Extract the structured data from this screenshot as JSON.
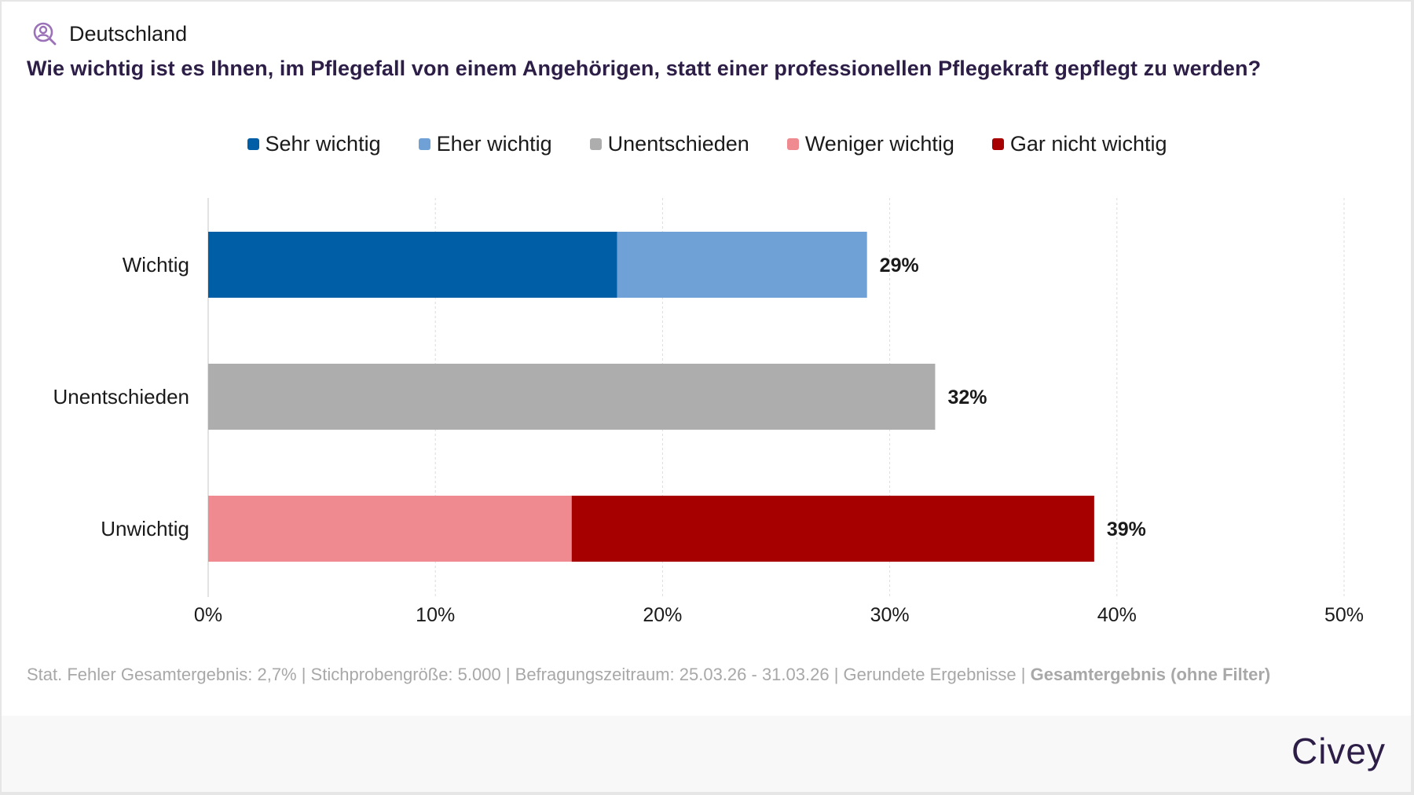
{
  "header": {
    "country": "Deutschland",
    "icon": "person-search-icon",
    "icon_color": "#9b72b8"
  },
  "question": "Wie wichtig ist es Ihnen, im Pflegefall von einem Angehörigen, statt einer professionellen Pflegekraft gepflegt zu werden?",
  "legend": [
    {
      "label": "Sehr wichtig",
      "color": "#005ea6"
    },
    {
      "label": "Eher wichtig",
      "color": "#6fa1d6"
    },
    {
      "label": "Unentschieden",
      "color": "#adadad"
    },
    {
      "label": "Weniger wichtig",
      "color": "#f08a91"
    },
    {
      "label": "Gar nicht wichtig",
      "color": "#a70000"
    }
  ],
  "chart_data": {
    "type": "bar",
    "orientation": "horizontal",
    "stacked": true,
    "title": "Wie wichtig ist es Ihnen, im Pflegefall von einem Angehörigen, statt einer professionellen Pflegekraft gepflegt zu werden?",
    "categories": [
      "Wichtig",
      "Unentschieden",
      "Unwichtig"
    ],
    "series": [
      {
        "name": "Sehr wichtig",
        "values": [
          18,
          0,
          0
        ]
      },
      {
        "name": "Eher wichtig",
        "values": [
          11,
          0,
          0
        ]
      },
      {
        "name": "Unentschieden",
        "values": [
          0,
          32,
          0
        ]
      },
      {
        "name": "Weniger wichtig",
        "values": [
          0,
          0,
          16
        ]
      },
      {
        "name": "Gar nicht wichtig",
        "values": [
          0,
          0,
          23
        ]
      }
    ],
    "totals": [
      "29%",
      "32%",
      "39%"
    ],
    "xlim": [
      0,
      50
    ],
    "xticks": [
      0,
      10,
      20,
      30,
      40,
      50
    ],
    "xtick_labels": [
      "0%",
      "10%",
      "20%",
      "30%",
      "40%",
      "50%"
    ],
    "xlabel": "",
    "ylabel": "",
    "grid": true,
    "legend_position": "top"
  },
  "footer": {
    "note": "Stat. Fehler Gesamtergebnis: 2,7% | Stichprobengröße: 5.000 | Befragungszeitraum: 25.03.26 - 31.03.26 | Gerundete Ergebnisse | ",
    "filter": "Gesamtergebnis (ohne Filter)",
    "brand": "Civey"
  }
}
